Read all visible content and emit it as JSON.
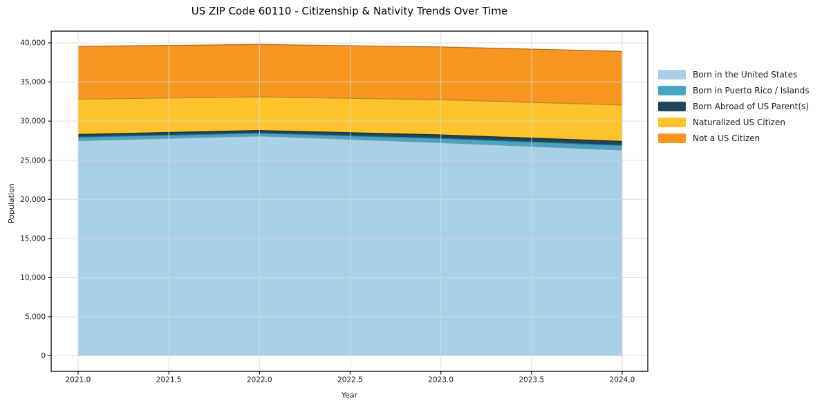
{
  "chart_data": {
    "type": "area",
    "stacked": true,
    "title": "US ZIP Code 60110 - Citizenship & Nativity Trends Over Time",
    "xlabel": "Year",
    "ylabel": "Population",
    "x": [
      2021,
      2022,
      2023,
      2024
    ],
    "xlim": [
      2020.85,
      2024.15
    ],
    "ylim": [
      -1990,
      41790
    ],
    "grid": true,
    "legend_position": "right",
    "background_color": "#ffffff",
    "grid_color": "#d9d9d9",
    "spine_color": "#000000",
    "x_ticks": {
      "values": [
        2021.0,
        2021.5,
        2022.0,
        2022.5,
        2023.0,
        2023.5,
        2024.0
      ],
      "labels": [
        "2021.0",
        "2021.5",
        "2022.0",
        "2022.5",
        "2023.0",
        "2023.5",
        "2024.0"
      ]
    },
    "y_ticks": {
      "values": [
        0,
        5000,
        10000,
        15000,
        20000,
        25000,
        30000,
        35000,
        40000
      ],
      "labels": [
        "0",
        "5,000",
        "10,000",
        "15,000",
        "20,000",
        "25,000",
        "30,000",
        "35,000",
        "40,000"
      ]
    },
    "series": [
      {
        "name": "Born in the United States",
        "color": "#A8D1E7",
        "values": [
          27500,
          28100,
          27250,
          26300
        ]
      },
      {
        "name": "Born in Puerto Rico / Islands",
        "color": "#46A5C4",
        "values": [
          450,
          350,
          530,
          580
        ]
      },
      {
        "name": "Born Abroad of US Parent(s)",
        "color": "#1F4557",
        "values": [
          350,
          350,
          450,
          530
        ]
      },
      {
        "name": "Naturalized US Citizen",
        "color": "#FCC32D",
        "values": [
          4500,
          4300,
          4500,
          4650
        ]
      },
      {
        "name": "Not a US Citizen",
        "color": "#F89622",
        "values": [
          6750,
          6700,
          6750,
          6850
        ]
      }
    ],
    "totals": [
      39550,
      39800,
      39480,
      38910
    ]
  }
}
